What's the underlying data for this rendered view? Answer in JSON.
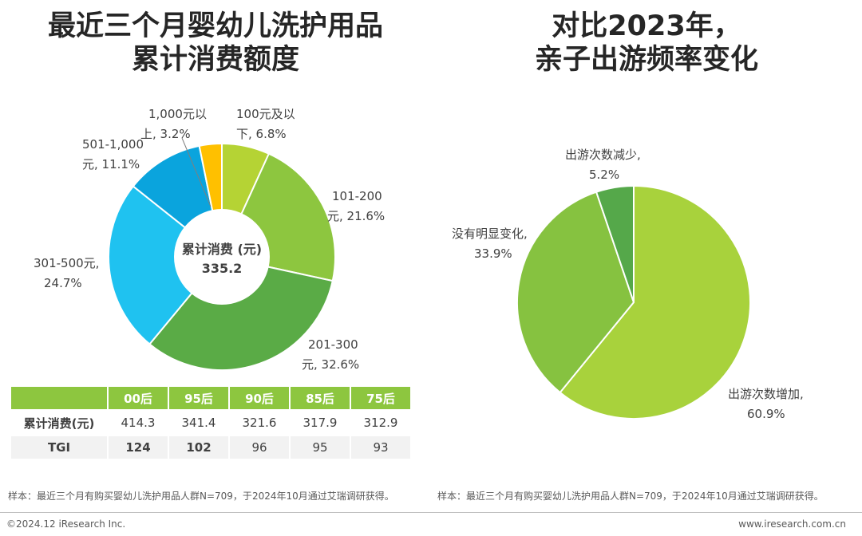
{
  "left_title": [
    "最近三个月婴幼儿洗护用品",
    "累计消费额度"
  ],
  "right_title": [
    "对比2023年，",
    "亲子出游频率变化"
  ],
  "chart_data": [
    {
      "type": "pie",
      "variant": "donut",
      "center_label": "累计消费 (元)",
      "center_value": "335.2",
      "slices": [
        {
          "label_lines": [
            "100元及以",
            "下, 6.8%"
          ],
          "value": 6.8,
          "color": "#b5d334"
        },
        {
          "label_lines": [
            "101-200",
            "元, 21.6%"
          ],
          "value": 21.6,
          "color": "#8dc63f"
        },
        {
          "label_lines": [
            "201-300",
            "元, 32.6%"
          ],
          "value": 32.6,
          "color": "#5aab46"
        },
        {
          "label_lines": [
            "301-500元,",
            "24.7%"
          ],
          "value": 24.7,
          "color": "#1fc2f0"
        },
        {
          "label_lines": [
            "501-1,000",
            "元, 11.1%"
          ],
          "value": 11.1,
          "color": "#0aa4dd"
        },
        {
          "label_lines": [
            "1,000元以",
            "上, 3.2%"
          ],
          "value": 3.2,
          "color": "#ffc000"
        }
      ]
    },
    {
      "type": "pie",
      "slices": [
        {
          "label_lines": [
            "出游次数增加,",
            "60.9%"
          ],
          "value": 60.9,
          "color": "#a8d23c"
        },
        {
          "label_lines": [
            "没有明显变化,",
            "33.9%"
          ],
          "value": 33.9,
          "color": "#86c240"
        },
        {
          "label_lines": [
            "出游次数减少,",
            "5.2%"
          ],
          "value": 5.2,
          "color": "#55a84a"
        }
      ]
    }
  ],
  "table": {
    "columns": [
      "00后",
      "95后",
      "90后",
      "85后",
      "75后"
    ],
    "rows": [
      {
        "label": "累计消费(元)",
        "values": [
          "414.3",
          "341.4",
          "321.6",
          "317.9",
          "312.9"
        ]
      },
      {
        "label": "TGI",
        "values": [
          "124",
          "102",
          "96",
          "95",
          "93"
        ]
      }
    ]
  },
  "note_left": "样本：最近三个月有购买婴幼儿洗护用品人群N=709，于2024年10月通过艾瑞调研获得。",
  "note_right": "样本：最近三个月有购买婴幼儿洗护用品人群N=709，于2024年10月通过艾瑞调研获得。",
  "footer_left": "©2024.12 iResearch Inc.",
  "footer_right": "www.iresearch.com.cn"
}
